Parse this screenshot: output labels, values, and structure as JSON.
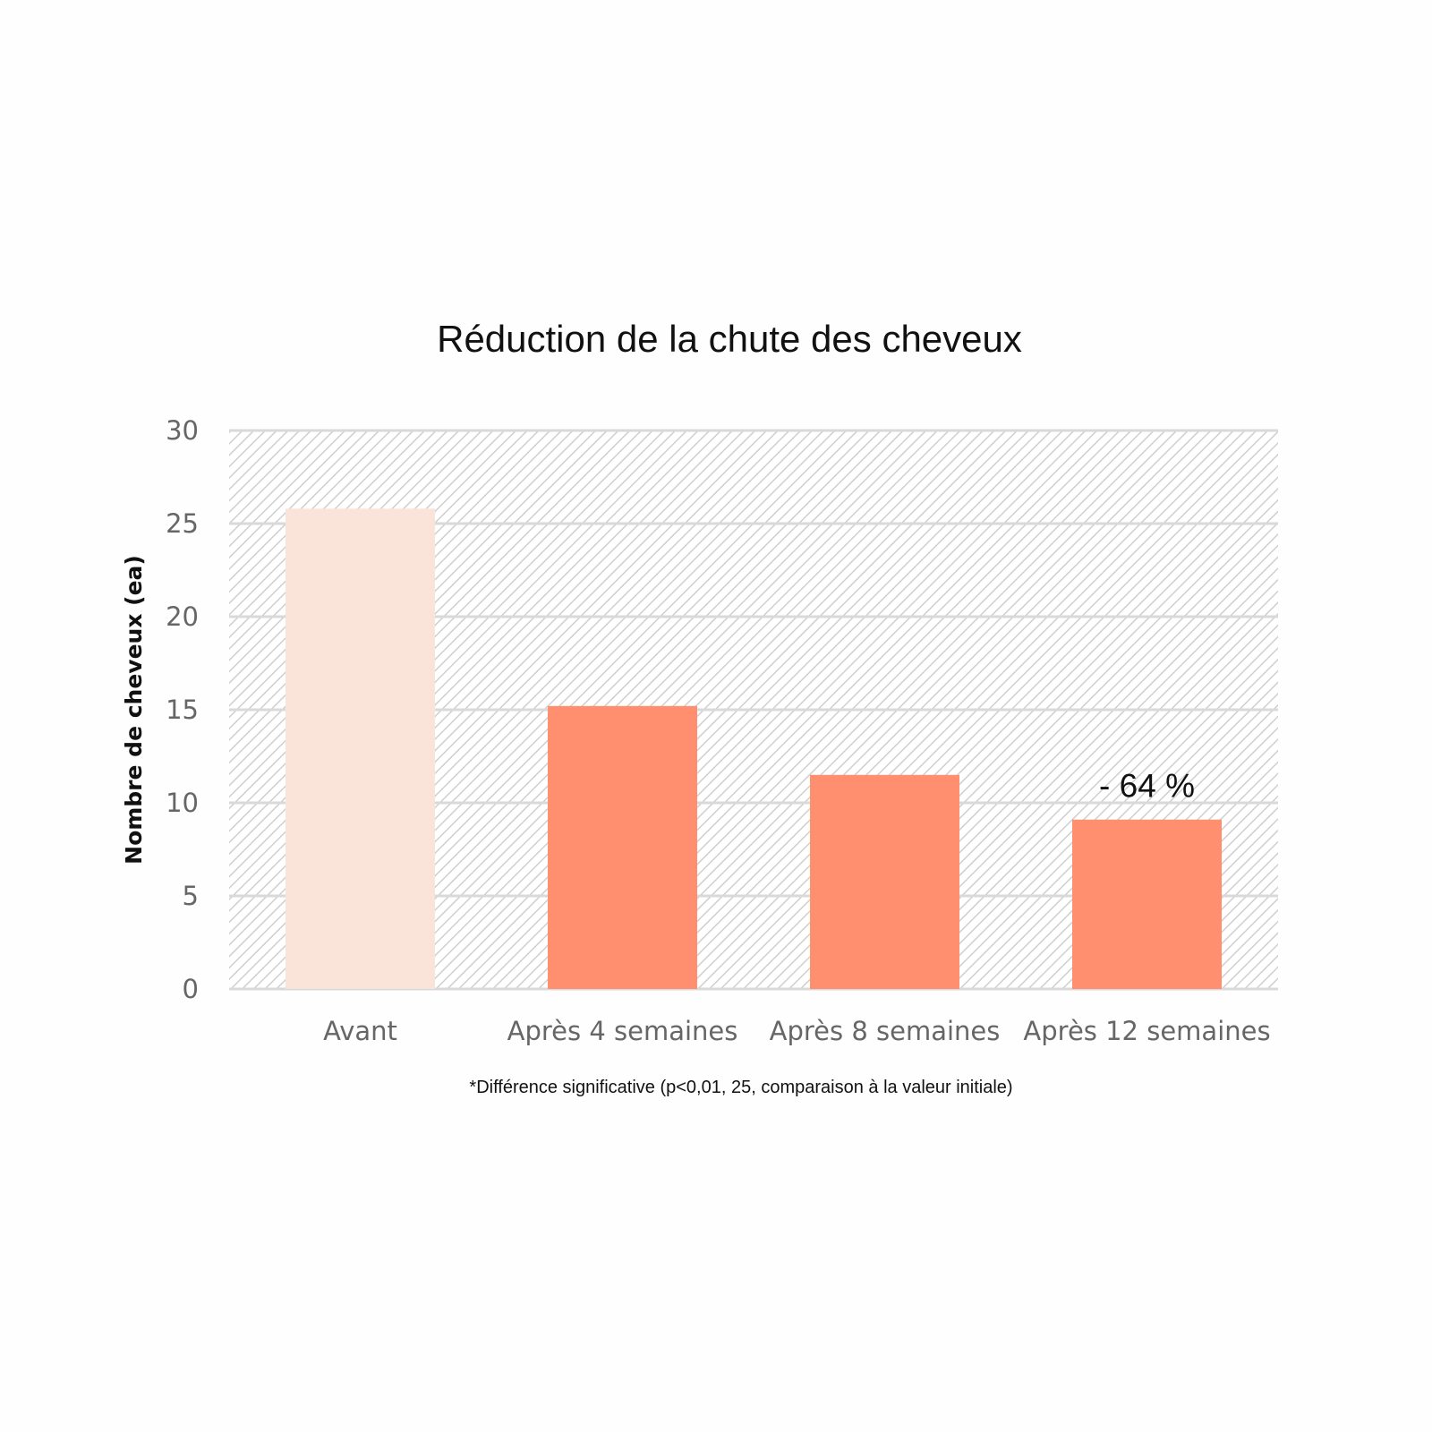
{
  "chart_data": {
    "type": "bar",
    "title": "Réduction de la chute des cheveux",
    "ylabel": "Nombre de cheveux (ea)",
    "xlabel": "",
    "categories": [
      "Avant",
      "Après 4 semaines",
      "Après 8 semaines",
      "Après 12 semaines"
    ],
    "values": [
      25.8,
      15.2,
      11.5,
      9.1
    ],
    "bar_colors": [
      "#fae3d9",
      "#ff8f6f",
      "#ff8f6f",
      "#ff8f6f"
    ],
    "ylim": [
      0,
      30
    ],
    "yticks": [
      0,
      5,
      10,
      15,
      20,
      25,
      30
    ],
    "grid": true,
    "legend": "none",
    "annotations": [
      {
        "category": "Après 12 semaines",
        "text": "- 64 %"
      }
    ],
    "footnote": "*Différence significative (p<0,01, 25, comparaison à la valeur initiale)"
  }
}
